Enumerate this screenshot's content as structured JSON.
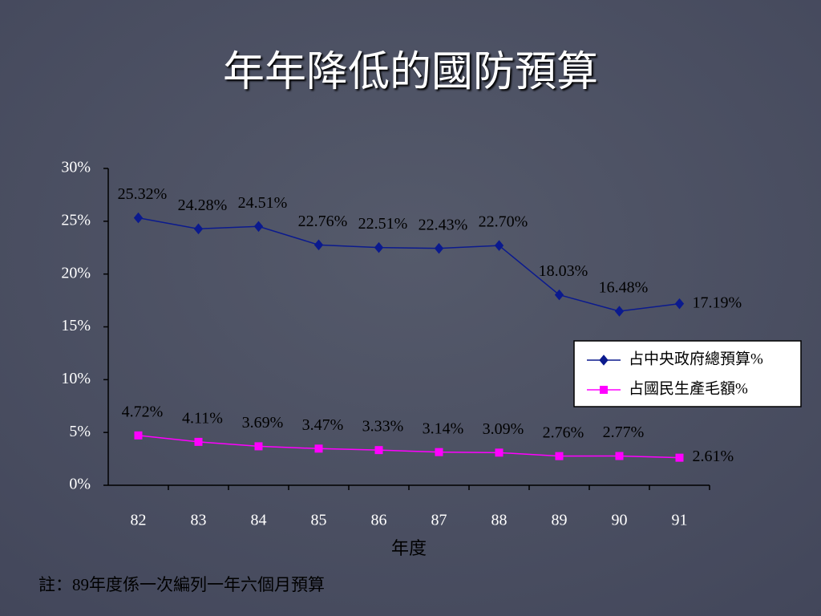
{
  "chart_data": {
    "type": "line",
    "title": "年年降低的國防預算",
    "x_label": "年度",
    "note": "註：89年度係一次編列一年六個月預算",
    "categories": [
      "82",
      "83",
      "84",
      "85",
      "86",
      "87",
      "88",
      "89",
      "90",
      "91"
    ],
    "series": [
      {
        "name": "占中央政府總預算%",
        "color": "#0b1a8e",
        "marker": "diamond",
        "values": [
          25.32,
          24.28,
          24.51,
          22.76,
          22.51,
          22.43,
          22.7,
          18.03,
          16.48,
          17.19
        ],
        "value_labels": [
          "25.32%",
          "24.28%",
          "24.51%",
          "22.76%",
          "22.51%",
          "22.43%",
          "22.70%",
          "18.03%",
          "16.48%",
          "17.19%"
        ]
      },
      {
        "name": "占國民生產毛額%",
        "color": "#ff00ff",
        "marker": "square",
        "values": [
          4.72,
          4.11,
          3.69,
          3.47,
          3.33,
          3.14,
          3.09,
          2.76,
          2.77,
          2.61
        ],
        "value_labels": [
          "4.72%",
          "4.11%",
          "3.69%",
          "3.47%",
          "3.33%",
          "3.14%",
          "3.09%",
          "2.76%",
          "2.77%",
          "2.61%"
        ]
      }
    ],
    "ylim": [
      0,
      30
    ],
    "yticks": [
      {
        "value": 0,
        "label": "0%"
      },
      {
        "value": 5,
        "label": "5%"
      },
      {
        "value": 10,
        "label": "10%"
      },
      {
        "value": 15,
        "label": "15%"
      },
      {
        "value": 20,
        "label": "20%"
      },
      {
        "value": 25,
        "label": "25%"
      },
      {
        "value": 30,
        "label": "30%"
      }
    ],
    "legend": "right"
  }
}
